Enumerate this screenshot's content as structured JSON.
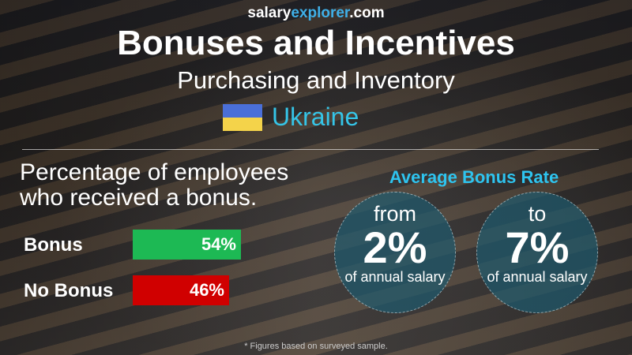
{
  "site": {
    "part1": "salary",
    "part2": "explorer",
    "part3": ".com"
  },
  "title": "Bonuses and Incentives",
  "subtitle": "Purchasing and Inventory",
  "country": "Ukraine",
  "colors": {
    "accent": "#35c5e8",
    "bonus": "#1db954",
    "no_bonus": "#d00000"
  },
  "percentage_heading": "Percentage of employees who received a bonus.",
  "bars": [
    {
      "label": "Bonus",
      "value_text": "54%",
      "value": 54
    },
    {
      "label": "No Bonus",
      "value_text": "46%",
      "value": 46
    }
  ],
  "average": {
    "heading": "Average Bonus Rate",
    "from_word": "from",
    "from_value": "2%",
    "to_word": "to",
    "to_value": "7%",
    "suffix": "of annual salary"
  },
  "footnote": "* Figures based on surveyed sample."
}
